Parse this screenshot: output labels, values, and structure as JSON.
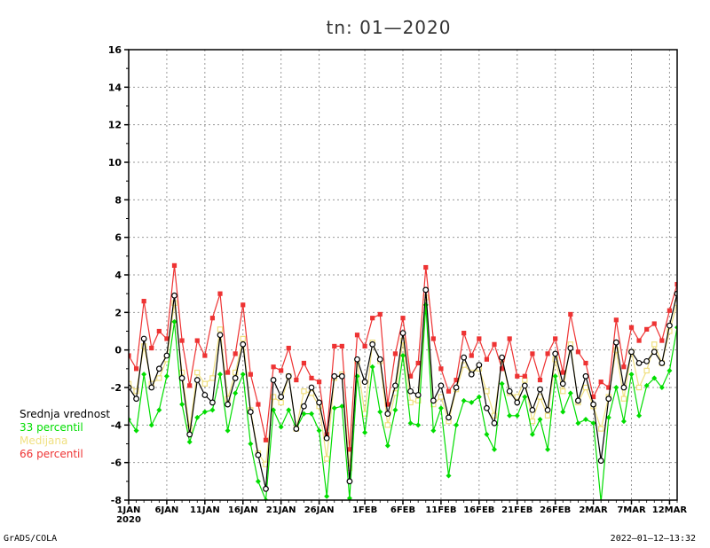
{
  "chart_data": {
    "type": "line",
    "title": "tn: 01—2020",
    "xlabel": "",
    "ylabel": "",
    "x_start": "2020-01-01",
    "ylim": [
      -8,
      16
    ],
    "yticks": [
      -8,
      -6,
      -4,
      -2,
      0,
      2,
      4,
      6,
      8,
      10,
      12,
      14,
      16
    ],
    "xticks": [
      {
        "label": "1JAN",
        "sub": "2020",
        "index": 0
      },
      {
        "label": "6JAN",
        "index": 5
      },
      {
        "label": "11JAN",
        "index": 10
      },
      {
        "label": "16JAN",
        "index": 15
      },
      {
        "label": "21JAN",
        "index": 20
      },
      {
        "label": "26JAN",
        "index": 25
      },
      {
        "label": "1FEB",
        "index": 31
      },
      {
        "label": "6FEB",
        "index": 36
      },
      {
        "label": "11FEB",
        "index": 41
      },
      {
        "label": "16FEB",
        "index": 46
      },
      {
        "label": "21FEB",
        "index": 51
      },
      {
        "label": "26FEB",
        "index": 56
      },
      {
        "label": "2MAR",
        "index": 61
      },
      {
        "label": "7MAR",
        "index": 66
      },
      {
        "label": "12MAR",
        "index": 71
      }
    ],
    "grid": true,
    "legend_position": "left",
    "series": [
      {
        "name": "Srednja vrednost",
        "color": "#000000",
        "marker": "circle",
        "values": [
          -2,
          -2.6,
          0.6,
          -2,
          -1,
          -0.3,
          2.9,
          -1.5,
          -4.5,
          -1.6,
          -2.4,
          -2.8,
          0.8,
          -2.9,
          -1.5,
          0.3,
          -3.3,
          -5.6,
          -7.4,
          -1.6,
          -2.5,
          -1.4,
          -4.2,
          -3.0,
          -2.0,
          -2.8,
          -4.7,
          -1.4,
          -1.4,
          -7,
          -0.5,
          -1.7,
          0.3,
          -0.5,
          -3.4,
          -1.9,
          0.9,
          -2.2,
          -2.4,
          3.2,
          -2.7,
          -1.9,
          -3.6,
          -2.0,
          -0.4,
          -1.3,
          -0.8,
          -3.1,
          -3.9,
          -0.4,
          -2.2,
          -2.8,
          -1.9,
          -3.2,
          -2.1,
          -3.2,
          -0.2,
          -1.8,
          0.1,
          -2.7,
          -1.4,
          -2.9,
          -5.9,
          -2.6,
          0.4,
          -2.0,
          -0.1,
          -0.7,
          -0.6,
          -0.1,
          -0.7,
          1.3,
          3.0
        ]
      },
      {
        "name": "33 percentil",
        "color": "#00dd00",
        "marker": "diamond",
        "values": [
          -3.7,
          -4.3,
          -1.3,
          -4.0,
          -3.2,
          -1.4,
          1.5,
          -2.9,
          -4.9,
          -3.6,
          -3.3,
          -3.2,
          -1.3,
          -4.3,
          -2.3,
          -1.3,
          -5,
          -7,
          -8,
          -3.2,
          -4.1,
          -3.2,
          -4.2,
          -3.4,
          -3.4,
          -4.3,
          -7.8,
          -3.1,
          -3,
          -7.9,
          -1.4,
          -4.4,
          -0.9,
          -3.3,
          -5.1,
          -3.2,
          -0.3,
          -3.9,
          -4,
          2.4,
          -4.3,
          -3.1,
          -6.7,
          -4.0,
          -2.7,
          -2.8,
          -2.5,
          -4.5,
          -5.3,
          -1.8,
          -3.5,
          -3.5,
          -2.5,
          -4.5,
          -3.7,
          -5.3,
          -1.4,
          -3.3,
          -2.3,
          -3.9,
          -3.7,
          -3.9,
          -8.1,
          -3.6,
          -2.0,
          -3.8,
          -1.3,
          -3.5,
          -1.9,
          -1.5,
          -2.0,
          -1.1,
          1.2
        ]
      },
      {
        "name": "Medijana",
        "color": "#f0e080",
        "marker": "square-open",
        "values": [
          -1.8,
          -2.2,
          0.2,
          -1.8,
          -1.5,
          -0.5,
          2.5,
          -1.2,
          -4.2,
          -1.2,
          -1.8,
          -1.5,
          1.1,
          -2.6,
          -1.2,
          0.6,
          -3.2,
          -5.5,
          -6.1,
          -2.5,
          -2.8,
          -1.4,
          -4.2,
          -2.2,
          -2.3,
          -3.0,
          -5.8,
          -1.5,
          -1.3,
          -6.3,
          -0.6,
          -3.4,
          0.4,
          -0.6,
          -4.0,
          -2.3,
          0.5,
          -2.8,
          -2.7,
          2.8,
          -2.9,
          -2.5,
          -3.8,
          -2.1,
          -0.8,
          -1.2,
          -1.0,
          -2.2,
          -3.5,
          -0.5,
          -2.3,
          -2.5,
          -1.6,
          -3.8,
          -2.5,
          -3.5,
          -0.5,
          -2.2,
          0.3,
          -2.8,
          -2.0,
          -3.0,
          -4.2,
          -2.5,
          0.0,
          -2.6,
          -0.1,
          -2.0,
          -1.1,
          0.3,
          -0.7,
          1.0,
          2.5
        ]
      },
      {
        "name": "66 percentil",
        "color": "#ee3333",
        "marker": "square",
        "values": [
          -0.3,
          -1,
          2.6,
          0.1,
          1,
          0.6,
          4.5,
          0.5,
          -1.9,
          0.5,
          -0.3,
          1.7,
          3.0,
          -1.2,
          -0.2,
          2.4,
          -1.3,
          -2.9,
          -4.8,
          -0.9,
          -1.1,
          0.1,
          -1.6,
          -0.7,
          -1.5,
          -1.7,
          -4.5,
          0.2,
          0.2,
          -5.3,
          0.8,
          0.2,
          1.7,
          1.9,
          -2.9,
          -0.2,
          1.7,
          -1.4,
          -0.7,
          4.4,
          0.6,
          -1.0,
          -2.2,
          -1.6,
          0.9,
          -0.3,
          0.6,
          -0.5,
          0.3,
          -1.0,
          0.6,
          -1.4,
          -1.4,
          -0.2,
          -1.6,
          -0.2,
          0.6,
          -1.2,
          1.9,
          -0.1,
          -0.7,
          -2.5,
          -1.7,
          -2.0,
          1.6,
          -0.9,
          1.2,
          0.5,
          1.1,
          1.4,
          0.5,
          2.1,
          3.5
        ]
      }
    ]
  },
  "footer": {
    "left": "GrADS/COLA",
    "right": "2022—01—12—13:32"
  }
}
